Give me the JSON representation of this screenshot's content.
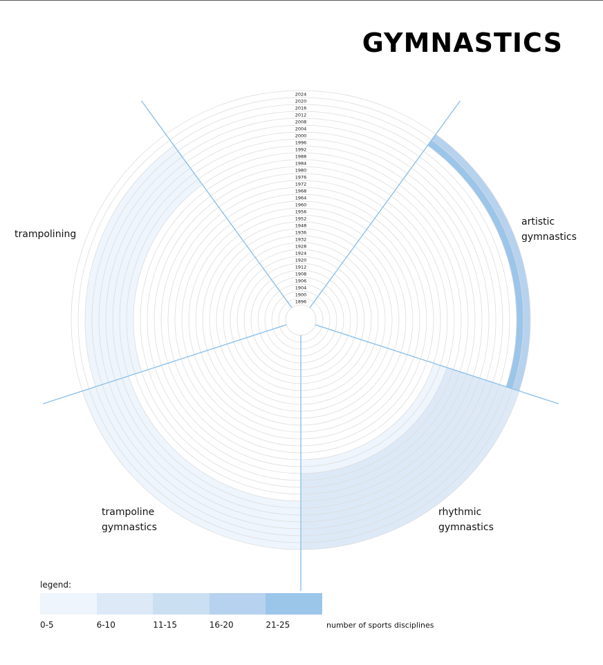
{
  "title": "GYMNASTICS",
  "chart_data": {
    "type": "radial",
    "years": [
      "1896",
      "1900",
      "1904",
      "1906",
      "1908",
      "1912",
      "1920",
      "1924",
      "1928",
      "1932",
      "1936",
      "1948",
      "1952",
      "1956",
      "1960",
      "1964",
      "1968",
      "1972",
      "1976",
      "1980",
      "1984",
      "1988",
      "1992",
      "1996",
      "2000",
      "2004",
      "2008",
      "2012",
      "2016",
      "2020",
      "2024"
    ],
    "sectors": [
      {
        "name": "artistic\ngymnastics",
        "label_lines": [
          "artistic",
          "gymnastics"
        ]
      },
      {
        "name": "rhythmic\ngymnastics",
        "label_lines": [
          "rhythmic",
          "gymnastics"
        ]
      },
      {
        "name": "trampoline\ngymnastics",
        "label_lines": [
          "trampoline",
          "gymnastics"
        ]
      },
      {
        "name": "trampolining",
        "label_lines": [
          "trampolining"
        ]
      }
    ],
    "bands": [
      {
        "sector": 0,
        "from": "2020",
        "to": "2020",
        "category": 4
      },
      {
        "sector": 0,
        "from": "2024",
        "to": "2024",
        "category": 3
      },
      {
        "sector": 1,
        "from": "1984",
        "to": "2024",
        "category": 1
      },
      {
        "sector": 1,
        "from": "1976",
        "to": "1980",
        "category": 0
      },
      {
        "sector": 2,
        "from": "2000",
        "to": "2024",
        "category": 0
      },
      {
        "sector": 3,
        "from": "1992",
        "to": "2016",
        "category": 0
      }
    ],
    "legend": {
      "title": "legend:",
      "categories": [
        "0-5",
        "6-10",
        "11-15",
        "16-20",
        "21-25"
      ],
      "colors": [
        "#eef5fc",
        "#dde9f7",
        "#cbdff3",
        "#b6d2ee",
        "#9cc5ea"
      ],
      "unit": "number of sports disciplines"
    }
  }
}
